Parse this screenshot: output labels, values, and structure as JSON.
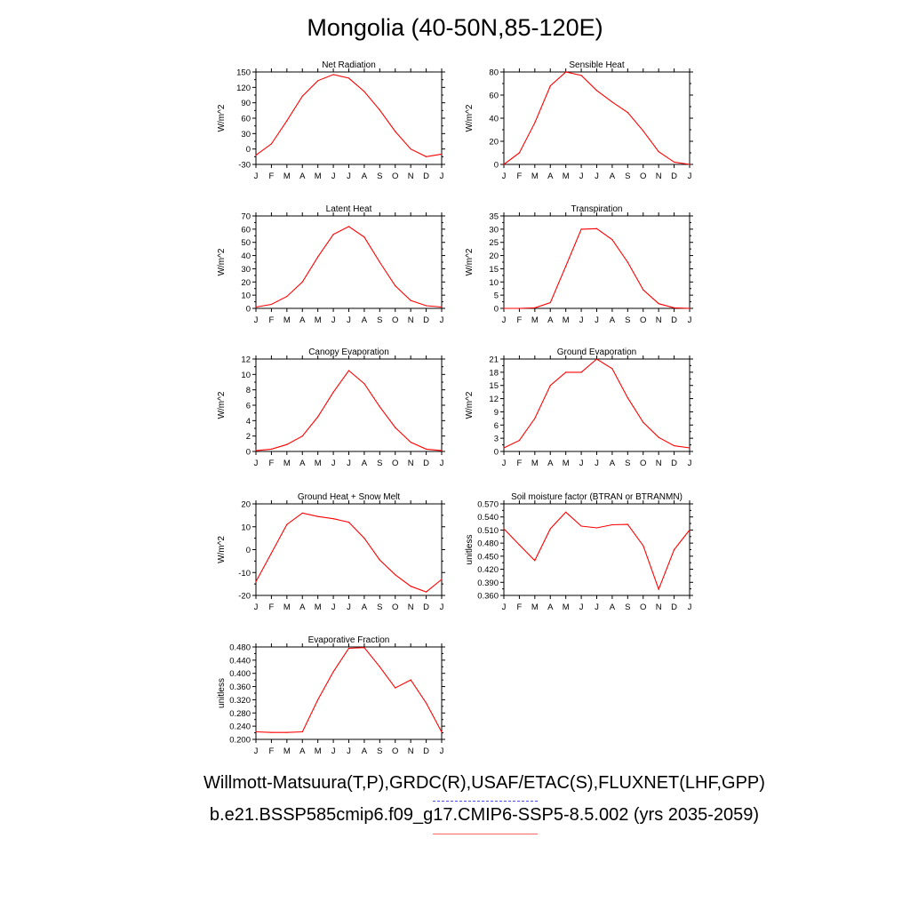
{
  "title": "Mongolia (40-50N,85-120E)",
  "footer": {
    "obs_line": "Willmott-Matsuura(T,P),GRDC(R),USAF/ETAC(S),FLUXNET(LHF,GPP)",
    "model_line": "b.e21.BSSP585cmip6.f09_g17.CMIP6-SSP5-8.5.002 (yrs 2035-2059)"
  },
  "colors": {
    "series": "#ff0000",
    "obs_legend": "#4d4dff",
    "model_legend": "#ff6666"
  },
  "chart_data": [
    {
      "type": "line",
      "title": "Net Radiation",
      "ylabel": "W/m^2",
      "x": [
        "J",
        "F",
        "M",
        "A",
        "M",
        "J",
        "J",
        "A",
        "S",
        "O",
        "N",
        "D",
        "J"
      ],
      "ylim": [
        -30,
        150
      ],
      "yticks": [
        "-30",
        "0",
        "30",
        "60",
        "90",
        "120",
        "150"
      ],
      "series": [
        {
          "values": [
            -12,
            10,
            55,
            103,
            133,
            145,
            138,
            112,
            76,
            34,
            0,
            -15,
            -10
          ]
        }
      ]
    },
    {
      "type": "line",
      "title": "Sensible Heat",
      "ylabel": "W/m^2",
      "x": [
        "J",
        "F",
        "M",
        "A",
        "M",
        "J",
        "J",
        "A",
        "S",
        "O",
        "N",
        "D",
        "J"
      ],
      "ylim": [
        0,
        80
      ],
      "yticks": [
        "0",
        "20",
        "40",
        "60",
        "80"
      ],
      "series": [
        {
          "values": [
            0,
            10,
            36,
            68,
            80,
            77,
            64,
            54,
            45,
            29,
            11,
            2,
            0
          ]
        }
      ]
    },
    {
      "type": "line",
      "title": "Latent Heat",
      "ylabel": "W/m^2",
      "x": [
        "J",
        "F",
        "M",
        "A",
        "M",
        "J",
        "J",
        "A",
        "S",
        "O",
        "N",
        "D",
        "J"
      ],
      "ylim": [
        0,
        70
      ],
      "yticks": [
        "0",
        "10",
        "20",
        "30",
        "40",
        "50",
        "60",
        "70"
      ],
      "series": [
        {
          "values": [
            1,
            3,
            9,
            20,
            39,
            56,
            62,
            54,
            35,
            17,
            6,
            2,
            1
          ]
        }
      ]
    },
    {
      "type": "line",
      "title": "Transpiration",
      "ylabel": "W/m^2",
      "x": [
        "J",
        "F",
        "M",
        "A",
        "M",
        "J",
        "J",
        "A",
        "S",
        "O",
        "N",
        "D",
        "J"
      ],
      "ylim": [
        0,
        35
      ],
      "yticks": [
        "0",
        "5",
        "10",
        "15",
        "20",
        "25",
        "30",
        "35"
      ],
      "series": [
        {
          "values": [
            0,
            0,
            0.2,
            2.2,
            16,
            30,
            30.2,
            26,
            17.5,
            7,
            1.8,
            0.2,
            0
          ]
        }
      ]
    },
    {
      "type": "line",
      "title": "Canopy Evaporation",
      "ylabel": "W/m^2",
      "x": [
        "J",
        "F",
        "M",
        "A",
        "M",
        "J",
        "J",
        "A",
        "S",
        "O",
        "N",
        "D",
        "J"
      ],
      "ylim": [
        0,
        12
      ],
      "yticks": [
        "0",
        "2",
        "4",
        "6",
        "8",
        "10",
        "12"
      ],
      "series": [
        {
          "values": [
            0.1,
            0.3,
            0.9,
            2,
            4.5,
            7.7,
            10.5,
            8.8,
            5.8,
            3.1,
            1.2,
            0.3,
            0.1
          ]
        }
      ]
    },
    {
      "type": "line",
      "title": "Ground Evaporation",
      "ylabel": "W/m^2",
      "x": [
        "J",
        "F",
        "M",
        "A",
        "M",
        "J",
        "J",
        "A",
        "S",
        "O",
        "N",
        "D",
        "J"
      ],
      "ylim": [
        0,
        21
      ],
      "yticks": [
        "0",
        "3",
        "6",
        "9",
        "12",
        "15",
        "18",
        "21"
      ],
      "series": [
        {
          "values": [
            0.8,
            2.5,
            7.5,
            15,
            18,
            18,
            21,
            18.8,
            12.2,
            6.6,
            3.2,
            1.3,
            0.8
          ]
        }
      ]
    },
    {
      "type": "line",
      "title": "Ground Heat + Snow Melt",
      "ylabel": "W/m^2",
      "x": [
        "J",
        "F",
        "M",
        "A",
        "M",
        "J",
        "J",
        "A",
        "S",
        "O",
        "N",
        "D",
        "J"
      ],
      "ylim": [
        -20,
        20
      ],
      "yticks": [
        "-20",
        "-10",
        "0",
        "10",
        "20"
      ],
      "series": [
        {
          "values": [
            -14,
            -1.5,
            11,
            16,
            14.5,
            13.5,
            12,
            5,
            -4.5,
            -11,
            -16,
            -18.5,
            -13
          ]
        }
      ]
    },
    {
      "type": "line",
      "title": "Soil moisture factor (BTRAN or BTRANMN)",
      "ylabel": "unitless",
      "x": [
        "J",
        "F",
        "M",
        "A",
        "M",
        "J",
        "J",
        "A",
        "S",
        "O",
        "N",
        "D",
        "J"
      ],
      "ylim": [
        0.36,
        0.57
      ],
      "yticks": [
        "0.360",
        "0.390",
        "0.420",
        "0.450",
        "0.480",
        "0.510",
        "0.540",
        "0.570"
      ],
      "series": [
        {
          "values": [
            0.513,
            0.476,
            0.44,
            0.513,
            0.551,
            0.519,
            0.515,
            0.522,
            0.523,
            0.474,
            0.374,
            0.465,
            0.51
          ]
        }
      ]
    },
    {
      "type": "line",
      "title": "Evaporative Fraction",
      "ylabel": "unitless",
      "x": [
        "J",
        "F",
        "M",
        "A",
        "M",
        "J",
        "J",
        "A",
        "S",
        "O",
        "N",
        "D",
        "J"
      ],
      "ylim": [
        0.2,
        0.48
      ],
      "yticks": [
        "0.200",
        "0.240",
        "0.280",
        "0.320",
        "0.360",
        "0.400",
        "0.440",
        "0.480"
      ],
      "series": [
        {
          "values": [
            0.223,
            0.221,
            0.221,
            0.223,
            0.32,
            0.405,
            0.476,
            0.478,
            0.42,
            0.356,
            0.38,
            0.31,
            0.222
          ]
        }
      ]
    }
  ]
}
